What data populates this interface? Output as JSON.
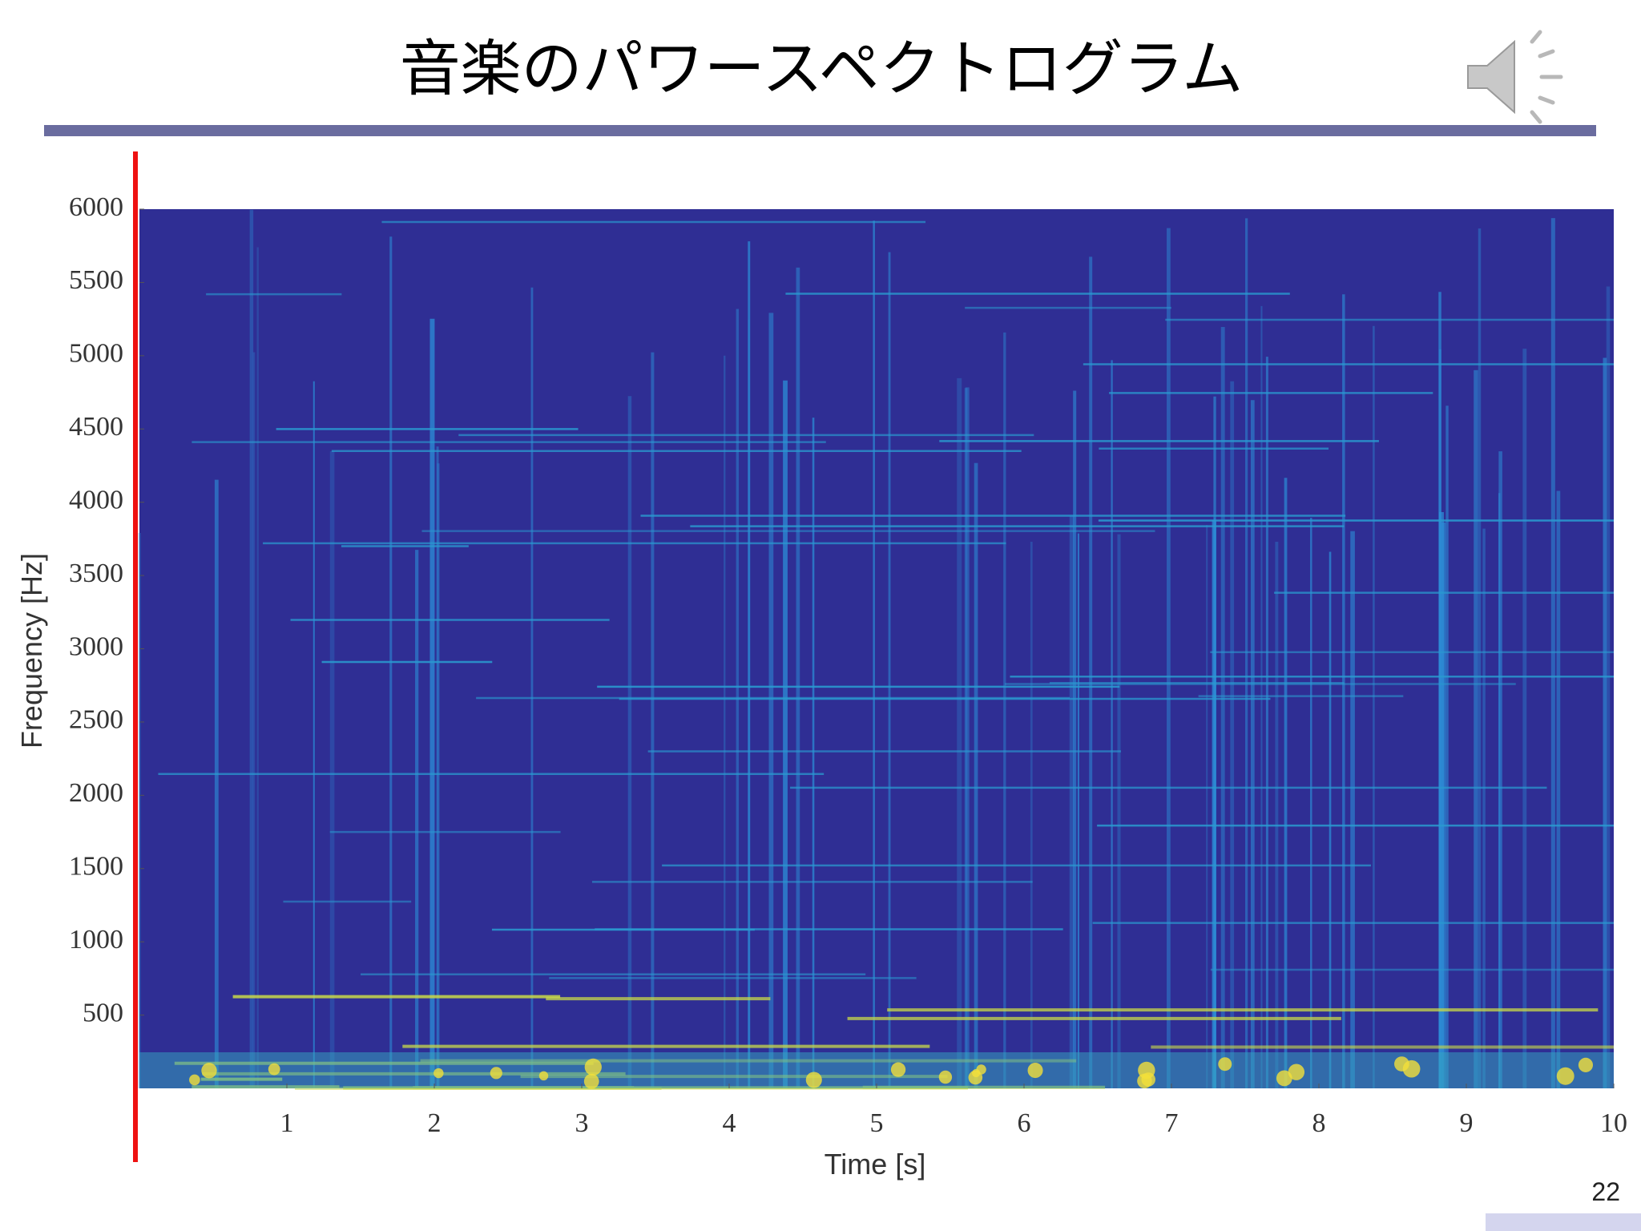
{
  "header": {
    "title": "音楽のパワースペクトログラム"
  },
  "chart_data": {
    "type": "spectrogram",
    "xlabel": "Time [s]",
    "ylabel": "Frequency [Hz]",
    "xlim": [
      0,
      10
    ],
    "xticks": [
      1,
      2,
      3,
      4,
      5,
      6,
      7,
      8,
      9,
      10
    ],
    "ylim": [
      0,
      6000
    ],
    "yticks": [
      500,
      1000,
      1500,
      2000,
      2500,
      3000,
      3500,
      4000,
      4500,
      5000,
      5500,
      6000
    ]
  },
  "footer": {
    "page_number": "22"
  }
}
